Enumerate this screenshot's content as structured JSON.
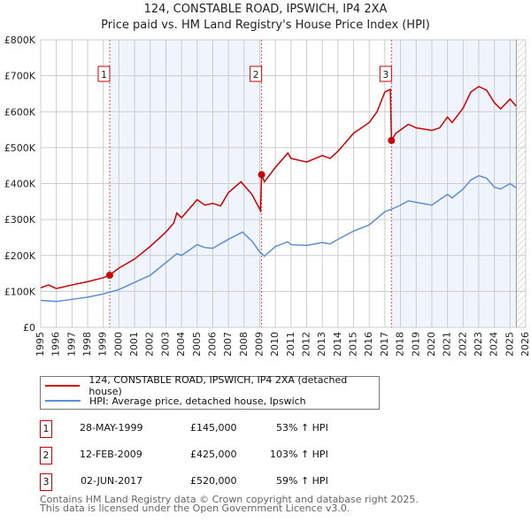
{
  "chart_data": {
    "type": "line",
    "title": "124, CONSTABLE ROAD, IPSWICH, IP4 2XA",
    "subtitle": "Price paid vs. HM Land Registry's House Price Index (HPI)",
    "xlim": [
      1995,
      2026
    ],
    "ylim": [
      0,
      800000
    ],
    "x_ticks": [
      "1995",
      "1996",
      "1997",
      "1998",
      "1999",
      "2000",
      "2001",
      "2002",
      "2003",
      "2004",
      "2005",
      "2006",
      "2007",
      "2008",
      "2009",
      "2010",
      "2011",
      "2012",
      "2013",
      "2014",
      "2015",
      "2016",
      "2017",
      "2018",
      "2019",
      "2020",
      "2021",
      "2022",
      "2023",
      "2024",
      "2025",
      "2026"
    ],
    "y_ticks": [
      {
        "v": 0,
        "label": "£0"
      },
      {
        "v": 100000,
        "label": "£100K"
      },
      {
        "v": 200000,
        "label": "£200K"
      },
      {
        "v": 300000,
        "label": "£300K"
      },
      {
        "v": 400000,
        "label": "£400K"
      },
      {
        "v": 500000,
        "label": "£500K"
      },
      {
        "v": 600000,
        "label": "£600K"
      },
      {
        "v": 700000,
        "label": "£700K"
      },
      {
        "v": 800000,
        "label": "£800K"
      }
    ],
    "grid": true,
    "series": [
      {
        "name": "124, CONSTABLE ROAD, IPSWICH, IP4 2XA (detached house)",
        "color": "#cc0000",
        "points": [
          [
            1995,
            110
          ],
          [
            1995.5,
            118
          ],
          [
            1996,
            108
          ],
          [
            1997,
            118
          ],
          [
            1998,
            127
          ],
          [
            1999,
            138
          ],
          [
            1999.4,
            145
          ],
          [
            2000,
            165
          ],
          [
            2001,
            190
          ],
          [
            2002,
            225
          ],
          [
            2003,
            265
          ],
          [
            2003.5,
            290
          ],
          [
            2003.7,
            318
          ],
          [
            2004,
            305
          ],
          [
            2005,
            355
          ],
          [
            2005.5,
            340
          ],
          [
            2006,
            345
          ],
          [
            2006.5,
            338
          ],
          [
            2007,
            375
          ],
          [
            2007.8,
            405
          ],
          [
            2008.5,
            370
          ],
          [
            2009.05,
            325
          ],
          [
            2009.12,
            425
          ],
          [
            2009.3,
            405
          ],
          [
            2010,
            445
          ],
          [
            2010.8,
            485
          ],
          [
            2011,
            470
          ],
          [
            2012,
            460
          ],
          [
            2013,
            478
          ],
          [
            2013.5,
            470
          ],
          [
            2014,
            490
          ],
          [
            2015,
            540
          ],
          [
            2016,
            570
          ],
          [
            2016.5,
            600
          ],
          [
            2017,
            655
          ],
          [
            2017.35,
            662
          ],
          [
            2017.42,
            520
          ],
          [
            2017.7,
            540
          ],
          [
            2018.5,
            565
          ],
          [
            2019,
            555
          ],
          [
            2020,
            548
          ],
          [
            2020.5,
            555
          ],
          [
            2021,
            585
          ],
          [
            2021.3,
            570
          ],
          [
            2022,
            610
          ],
          [
            2022.5,
            655
          ],
          [
            2023,
            670
          ],
          [
            2023.5,
            660
          ],
          [
            2024,
            625
          ],
          [
            2024.4,
            608
          ],
          [
            2025,
            635
          ],
          [
            2025.4,
            615
          ]
        ]
      },
      {
        "name": "HPI: Average price, detached house, Ipswich",
        "color": "#5b8fd6",
        "points": [
          [
            1995,
            75
          ],
          [
            1996,
            72
          ],
          [
            1997,
            78
          ],
          [
            1998,
            84
          ],
          [
            1999,
            93
          ],
          [
            2000,
            105
          ],
          [
            2001,
            125
          ],
          [
            2002,
            145
          ],
          [
            2003,
            180
          ],
          [
            2003.7,
            205
          ],
          [
            2004,
            200
          ],
          [
            2005,
            230
          ],
          [
            2005.5,
            222
          ],
          [
            2006,
            220
          ],
          [
            2007,
            245
          ],
          [
            2007.9,
            265
          ],
          [
            2008.5,
            240
          ],
          [
            2009,
            210
          ],
          [
            2009.3,
            198
          ],
          [
            2010,
            225
          ],
          [
            2010.8,
            238
          ],
          [
            2011,
            230
          ],
          [
            2012,
            228
          ],
          [
            2013,
            236
          ],
          [
            2013.5,
            232
          ],
          [
            2014,
            245
          ],
          [
            2015,
            268
          ],
          [
            2016,
            285
          ],
          [
            2017,
            322
          ],
          [
            2017.5,
            330
          ],
          [
            2018,
            340
          ],
          [
            2018.5,
            352
          ],
          [
            2019,
            348
          ],
          [
            2020,
            340
          ],
          [
            2020.5,
            355
          ],
          [
            2021,
            370
          ],
          [
            2021.3,
            360
          ],
          [
            2022,
            385
          ],
          [
            2022.5,
            410
          ],
          [
            2023,
            422
          ],
          [
            2023.5,
            415
          ],
          [
            2024,
            390
          ],
          [
            2024.4,
            385
          ],
          [
            2025,
            400
          ],
          [
            2025.4,
            388
          ]
        ]
      }
    ],
    "value_unit": "thousands GBP",
    "data_end": 2025.4,
    "sales": [
      {
        "id": "1",
        "x": 1999.41,
        "value": 145,
        "date": "28-MAY-1999",
        "price": "£145,000",
        "hpi": "53% ↑ HPI"
      },
      {
        "id": "2",
        "x": 2009.12,
        "value": 425,
        "date": "12-FEB-2009",
        "price": "£425,000",
        "hpi": "103% ↑ HPI"
      },
      {
        "id": "3",
        "x": 2017.42,
        "value": 520,
        "date": "02-JUN-2017",
        "price": "£520,000",
        "hpi": "59% ↑ HPI"
      }
    ]
  },
  "footer": {
    "line1": "Contains HM Land Registry data © Crown copyright and database right 2025.",
    "line2": "This data is licensed under the Open Government Licence v3.0."
  }
}
